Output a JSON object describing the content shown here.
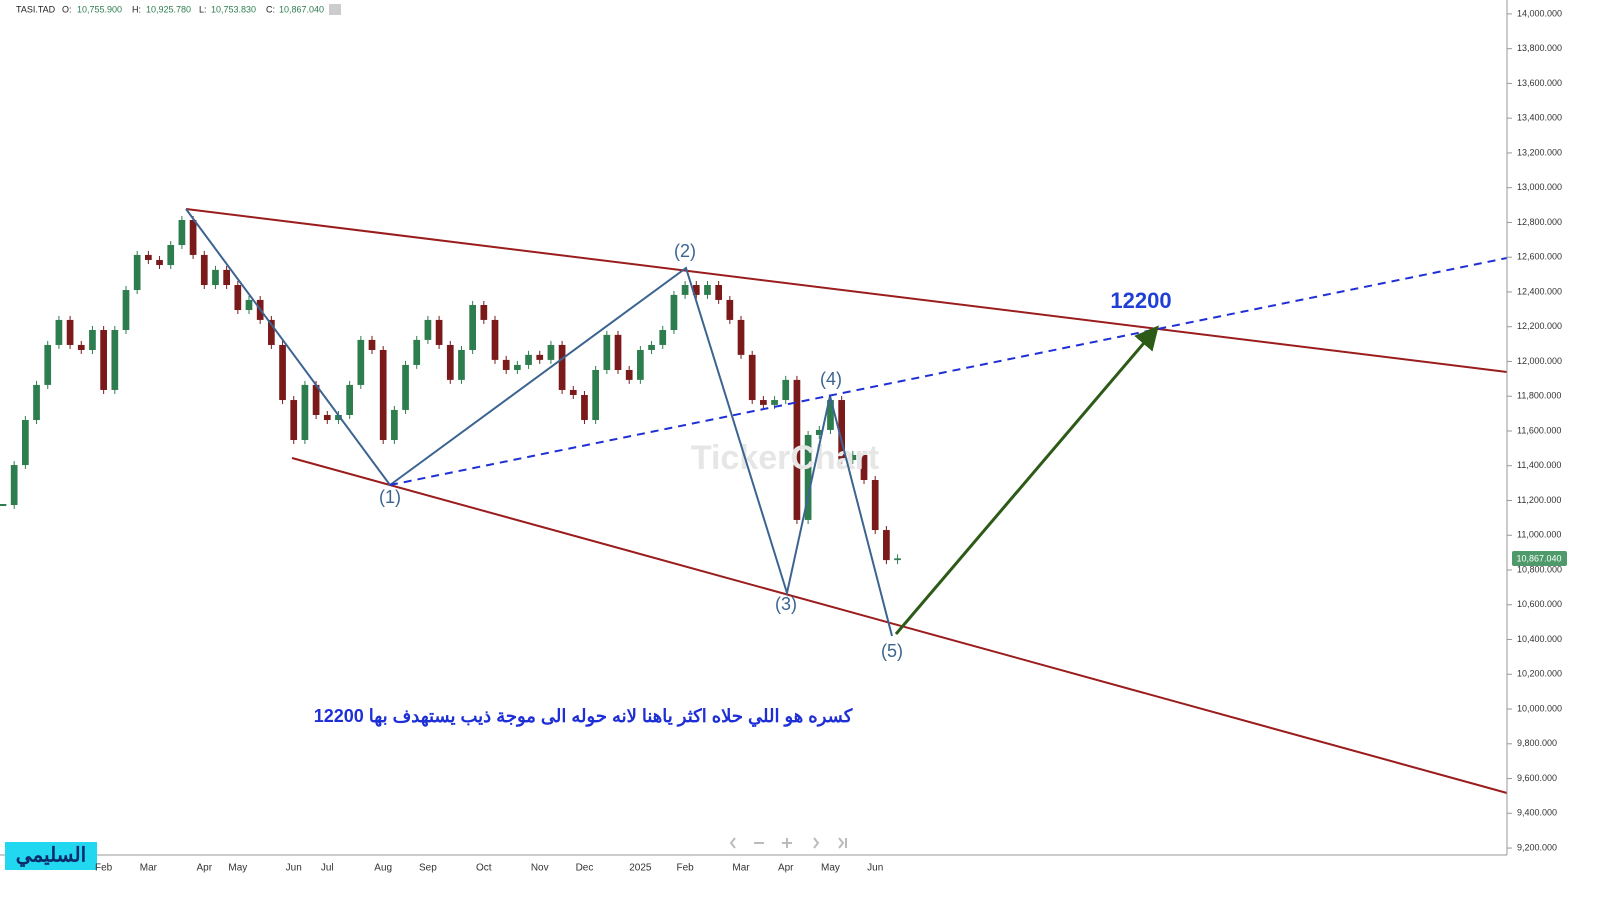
{
  "chart_data": {
    "type": "candlestick",
    "header": {
      "symbol": "TASI.TAD",
      "ohlc": [
        {
          "label": "O:",
          "value": "10,755.900"
        },
        {
          "label": "H:",
          "value": "10,925.780"
        },
        {
          "label": "L:",
          "value": "10,753.830"
        },
        {
          "label": "C:",
          "value": "10,867.040"
        }
      ]
    },
    "last_price_label": "10,867.040",
    "up_color": "#2e7d4f",
    "down_color": "#7a1a1a",
    "categories": [
      null,
      null,
      null,
      null,
      null,
      null,
      null,
      null,
      null,
      "Feb",
      null,
      null,
      null,
      "Mar",
      null,
      null,
      null,
      null,
      "Apr",
      null,
      null,
      "May",
      null,
      null,
      null,
      null,
      "Jun",
      null,
      null,
      "Jul",
      null,
      null,
      null,
      null,
      "Aug",
      null,
      null,
      null,
      "Sep",
      null,
      null,
      null,
      null,
      "Oct",
      null,
      null,
      null,
      null,
      "Nov",
      null,
      null,
      null,
      "Dec",
      null,
      null,
      null,
      null,
      "2025",
      null,
      null,
      null,
      "Feb",
      null,
      null,
      null,
      null,
      "Mar",
      null,
      null,
      null,
      "Apr",
      null,
      null,
      null,
      "May",
      null,
      null,
      null,
      "Jun",
      null,
      null,
      null,
      null,
      null,
      null,
      null,
      null,
      null,
      null,
      null,
      null,
      null,
      null,
      null,
      null,
      null,
      null,
      null,
      null,
      null,
      null,
      null,
      null,
      null,
      null,
      null,
      null,
      null,
      null,
      null,
      null,
      null,
      null,
      null,
      null,
      null,
      null,
      null,
      null,
      null,
      null,
      null,
      null,
      null,
      null,
      null,
      null,
      null,
      null,
      null,
      null,
      null,
      null,
      null,
      null
    ],
    "values": [
      11174,
      11404,
      11663,
      11865,
      12095,
      12239,
      12095,
      12066,
      12181,
      11836,
      12181,
      12411,
      12613,
      12584,
      12555,
      12670,
      12814,
      12613,
      12440,
      12527,
      12440,
      12296,
      12354,
      12239,
      12095,
      11778,
      11548,
      11865,
      11692,
      11663,
      11692,
      11865,
      12124,
      12066,
      11548,
      11721,
      11980,
      12124,
      12239,
      12095,
      11894,
      12066,
      12325,
      12239,
      12009,
      11951,
      11980,
      12038,
      12009,
      12095,
      11836,
      11807,
      11663,
      11951,
      12153,
      11951,
      11894,
      12066,
      12095,
      12181,
      12383,
      12440,
      12383,
      12440,
      12354,
      12239,
      12038,
      11778,
      11750,
      11778,
      11894,
      11088,
      11577,
      11606,
      11778,
      11433,
      11462,
      11318,
      11030,
      10857,
      10867.04,
      null,
      null,
      null,
      null,
      null,
      null,
      null,
      null,
      null,
      null,
      null,
      null,
      null,
      null,
      null,
      null,
      null,
      null,
      null,
      null,
      null,
      null,
      null,
      null,
      null,
      null,
      null,
      null,
      null,
      null,
      null,
      null,
      null,
      null,
      null,
      null,
      null,
      null,
      null,
      null,
      null,
      null,
      null,
      null,
      null,
      null,
      null,
      null,
      null,
      null,
      null,
      null,
      null,
      null
    ],
    "ylim": [
      9160,
      14080
    ],
    "yticks": [
      {
        "value": 9200,
        "label": "9,200.000"
      },
      {
        "value": 9400,
        "label": "9,400.000"
      },
      {
        "value": 9600,
        "label": "9,600.000"
      },
      {
        "value": 9800,
        "label": "9,800.000"
      },
      {
        "value": 10000,
        "label": "10,000.000"
      },
      {
        "value": 10200,
        "label": "10,200.000"
      },
      {
        "value": 10400,
        "label": "10,400.000"
      },
      {
        "value": 10600,
        "label": "10,600.000"
      },
      {
        "value": 10800,
        "label": "10,800.000"
      },
      {
        "value": 11000,
        "label": "11,000.000"
      },
      {
        "value": 11200,
        "label": "11,200.000"
      },
      {
        "value": 11400,
        "label": "11,400.000"
      },
      {
        "value": 11600,
        "label": "11,600.000"
      },
      {
        "value": 11800,
        "label": "11,800.000"
      },
      {
        "value": 12000,
        "label": "12,000.000"
      },
      {
        "value": 12200,
        "label": "12,200.000"
      },
      {
        "value": 12400,
        "label": "12,400.000"
      },
      {
        "value": 12600,
        "label": "12,600.000"
      },
      {
        "value": 12800,
        "label": "12,800.000"
      },
      {
        "value": 13000,
        "label": "13,000.000"
      },
      {
        "value": 13200,
        "label": "13,200.000"
      },
      {
        "value": 13400,
        "label": "13,400.000"
      },
      {
        "value": 13600,
        "label": "13,600.000"
      },
      {
        "value": 13800,
        "label": "13,800.000"
      },
      {
        "value": 14000,
        "label": "14,000.000"
      }
    ],
    "grid": false,
    "annotations": {
      "wave_labels": [
        "(1)",
        "(2)",
        "(3)",
        "(4)",
        "(5)"
      ],
      "target": "12200",
      "note": "كسره هو اللي حلاه اكثر ياهنا لانه حوله الى موجة ذيب يستهدف بها 12200"
    },
    "watermark": "TickerChart",
    "logo": "السليمي"
  }
}
